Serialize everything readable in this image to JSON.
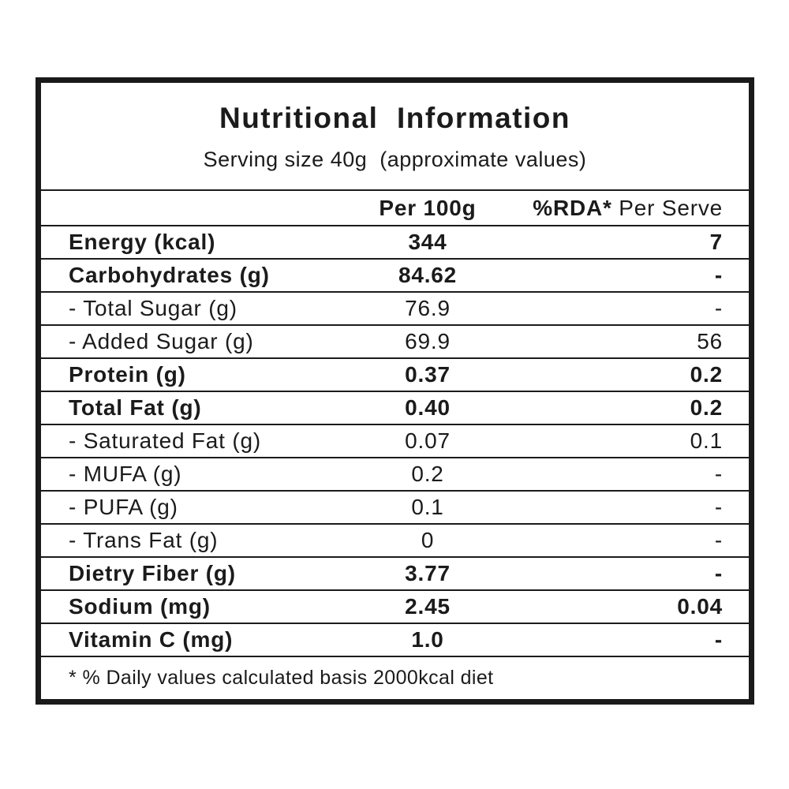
{
  "label": {
    "title": "Nutritional  Information",
    "serving_line": "Serving size 40g  (approximate values)",
    "columns": {
      "per_100g": "Per 100g",
      "rda": "%RDA*",
      "per_serve": " Per Serve"
    },
    "footnote": "* % Daily values calculated basis 2000kcal diet"
  },
  "table": {
    "rows": [
      {
        "label": "Energy (kcal)",
        "per_100g": "344",
        "per_serve": "7",
        "emphasis": true
      },
      {
        "label": "Carbohydrates (g)",
        "per_100g": "84.62",
        "per_serve": "-",
        "emphasis": true
      },
      {
        "label": "- Total Sugar (g)",
        "per_100g": "76.9",
        "per_serve": "-",
        "emphasis": false
      },
      {
        "label": "- Added Sugar (g)",
        "per_100g": "69.9",
        "per_serve": "56",
        "emphasis": false
      },
      {
        "label": "Protein (g)",
        "per_100g": "0.37",
        "per_serve": "0.2",
        "emphasis": true
      },
      {
        "label": "Total Fat (g)",
        "per_100g": "0.40",
        "per_serve": "0.2",
        "emphasis": true
      },
      {
        "label": "- Saturated Fat (g)",
        "per_100g": "0.07",
        "per_serve": "0.1",
        "emphasis": false
      },
      {
        "label": "- MUFA (g)",
        "per_100g": "0.2",
        "per_serve": "-",
        "emphasis": false
      },
      {
        "label": "- PUFA (g)",
        "per_100g": "0.1",
        "per_serve": "-",
        "emphasis": false
      },
      {
        "label": "- Trans Fat (g)",
        "per_100g": "0",
        "per_serve": "-",
        "emphasis": false
      },
      {
        "label": "Dietry Fiber (g)",
        "per_100g": "3.77",
        "per_serve": "-",
        "emphasis": true
      },
      {
        "label": "Sodium (mg)",
        "per_100g": "2.45",
        "per_serve": "0.04",
        "emphasis": true
      },
      {
        "label": "Vitamin C (mg)",
        "per_100g": "1.0",
        "per_serve": "-",
        "emphasis": true
      }
    ]
  }
}
